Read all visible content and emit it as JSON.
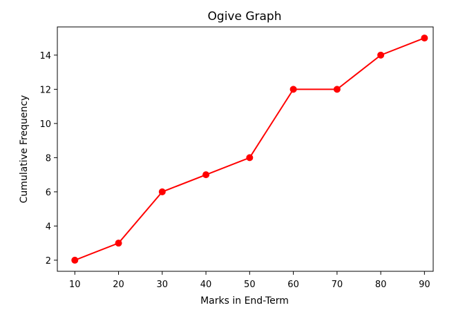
{
  "chart_data": {
    "type": "line",
    "title": "Ogive Graph",
    "xlabel": "Marks in End-Term",
    "ylabel": "Cumulative Frequency",
    "x": [
      10,
      20,
      30,
      40,
      50,
      60,
      70,
      80,
      90
    ],
    "x_ticks": [
      "10",
      "20",
      "30",
      "40",
      "50",
      "60",
      "70",
      "80",
      "90"
    ],
    "y_ticks": [
      "2",
      "4",
      "6",
      "8",
      "10",
      "12",
      "14"
    ],
    "xlim": [
      6,
      92
    ],
    "ylim": [
      1.35,
      15.65
    ],
    "grid": false,
    "series": [
      {
        "color": "#ff0000",
        "marker": "circle",
        "values": [
          2,
          3,
          6,
          7,
          8,
          12,
          12,
          14,
          15
        ]
      }
    ]
  }
}
